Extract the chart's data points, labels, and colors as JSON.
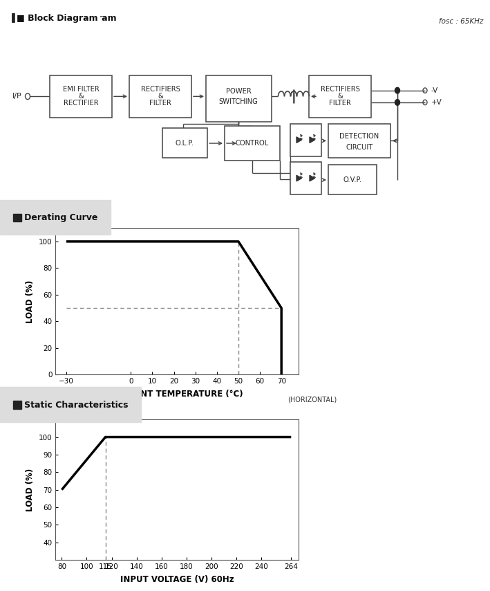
{
  "bg_color": "#ffffff",
  "section1_title": "■ Block Diagram",
  "fosc_label": "fosc : 65KHz",
  "section2_title": "■ Derating Curve",
  "section3_title": "■ Static Characteristics",
  "derating": {
    "x": [
      -30,
      50,
      70,
      70
    ],
    "y": [
      100,
      100,
      50,
      0
    ],
    "xlim": [
      -35,
      78
    ],
    "ylim": [
      0,
      110
    ],
    "xticks": [
      -30,
      0,
      10,
      20,
      30,
      40,
      50,
      60,
      70
    ],
    "yticks": [
      0,
      20,
      40,
      60,
      80,
      100
    ],
    "xlabel": "AMBIENT TEMPERATURE (°C)",
    "ylabel": "LOAD (%)",
    "horizontal_label": "(HORIZONTAL)"
  },
  "static": {
    "x": [
      80,
      115,
      264
    ],
    "y": [
      70,
      100,
      100
    ],
    "xlim": [
      75,
      270
    ],
    "ylim": [
      30,
      110
    ],
    "xticks": [
      80,
      100,
      115,
      120,
      140,
      160,
      180,
      200,
      220,
      240,
      264
    ],
    "yticks": [
      40,
      50,
      60,
      70,
      80,
      90,
      100
    ],
    "xlabel": "INPUT VOLTAGE (V) 60Hz",
    "ylabel": "LOAD (%)"
  }
}
